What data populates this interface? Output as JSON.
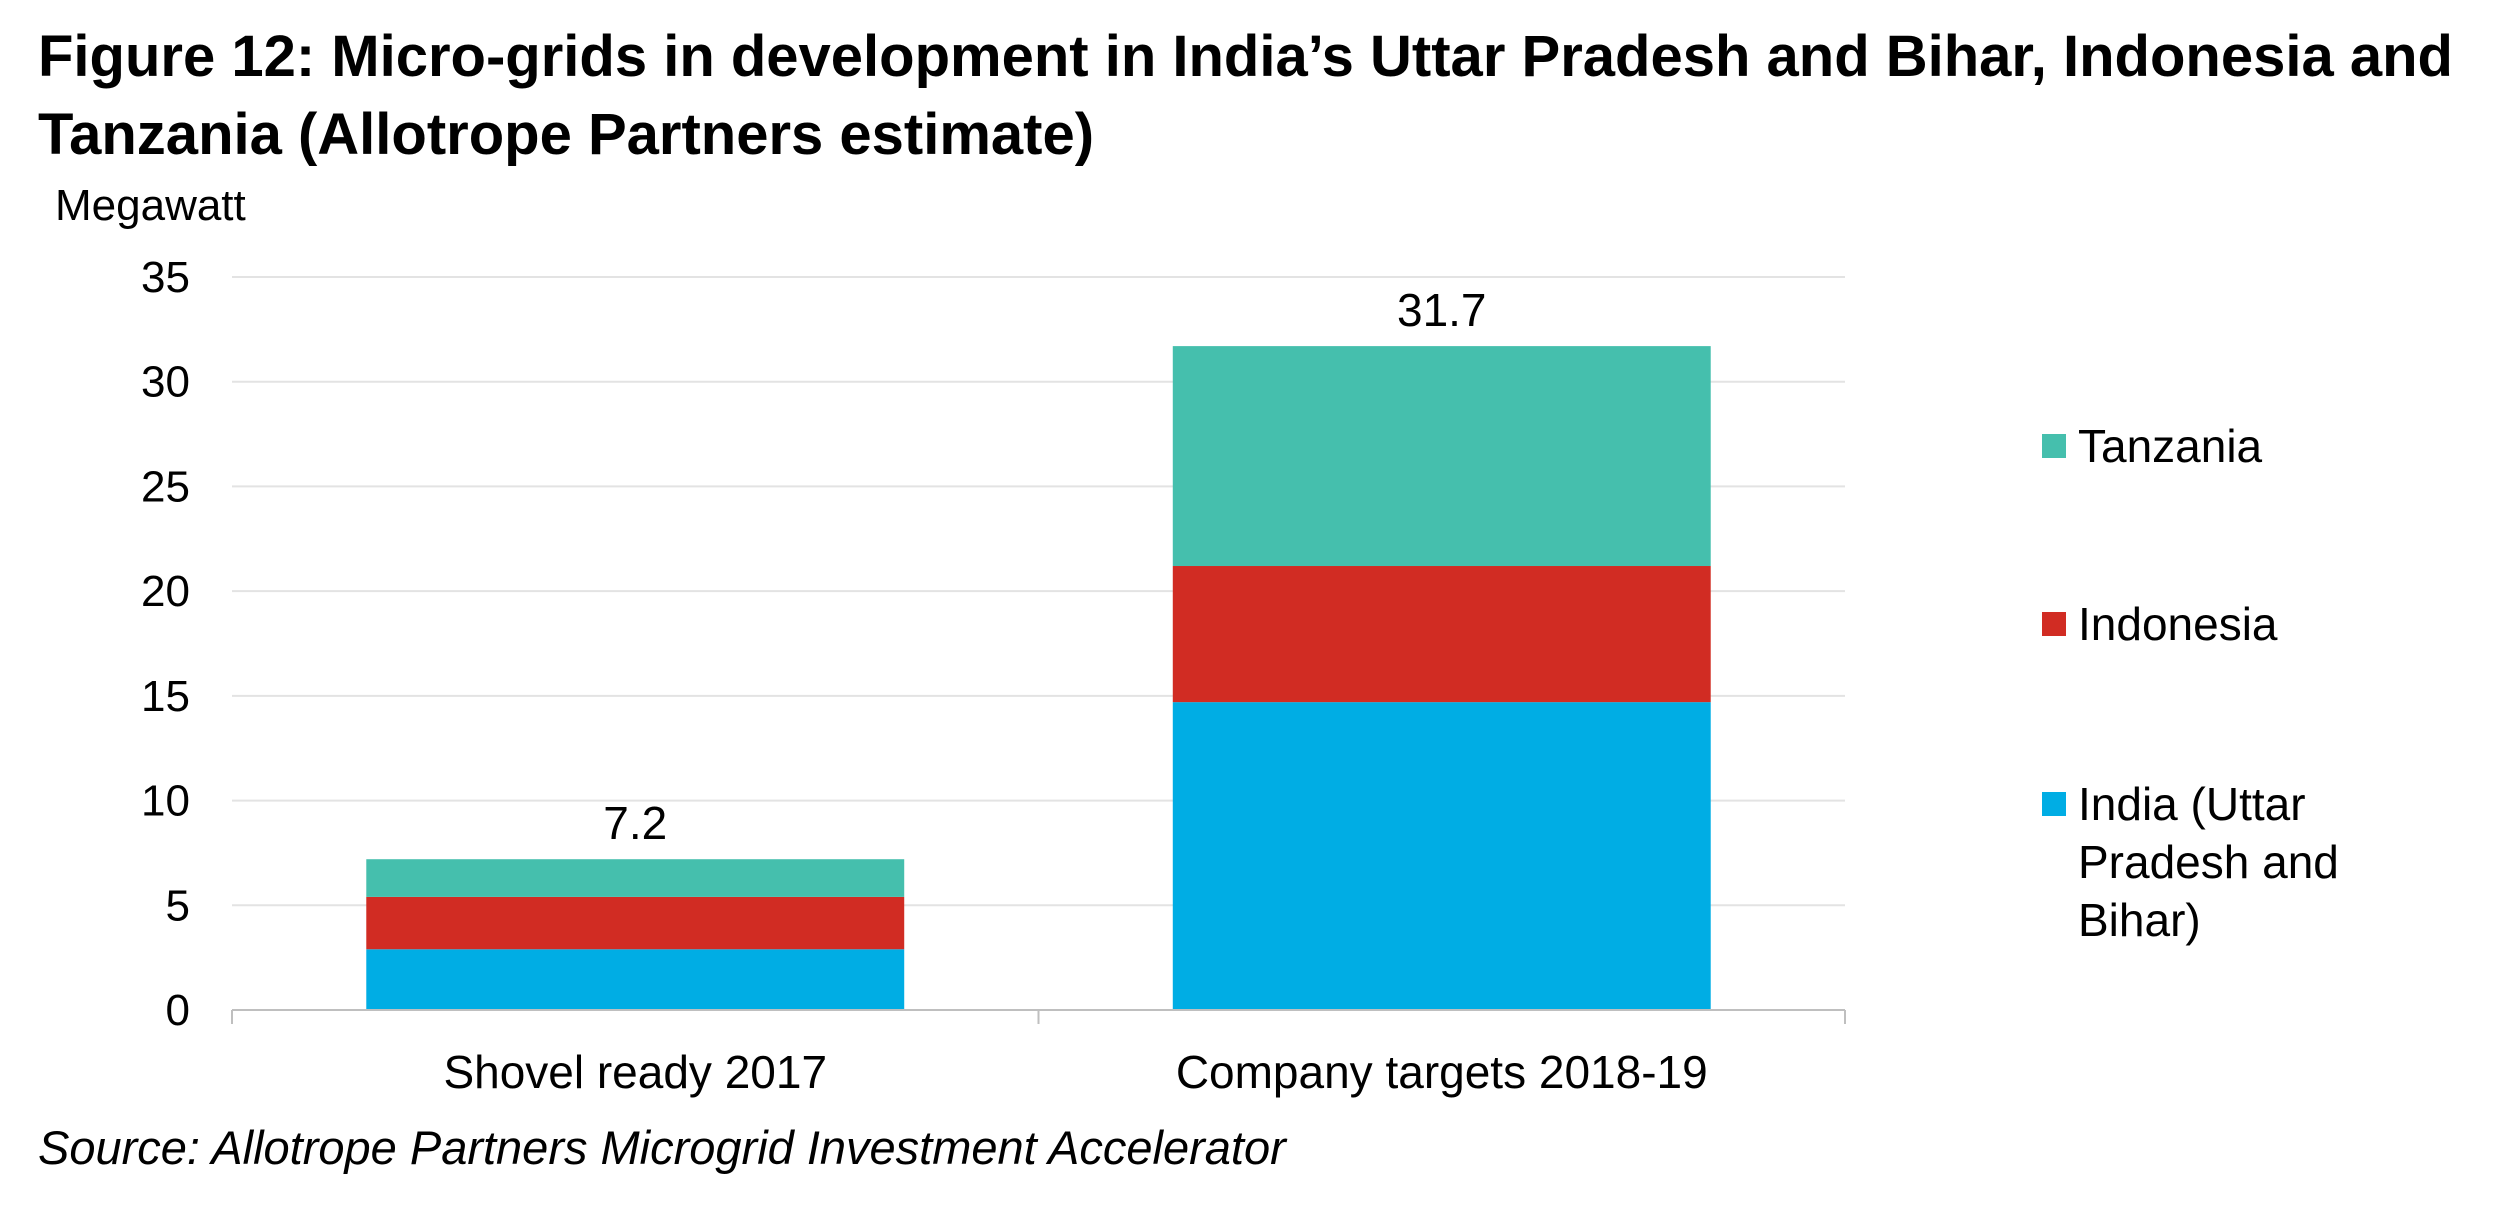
{
  "figure": {
    "title": "Figure 12: Micro-grids in development in India’s Uttar Pradesh and Bihar, Indonesia and Tanzania (Allotrope Partners estimate)",
    "source": "Source: Allotrope Partners Microgrid Investment Accelerator"
  },
  "chart_data": {
    "type": "bar",
    "stacked": true,
    "title": "",
    "xlabel": "",
    "ylabel": "Megawatt",
    "ylim": [
      0,
      35
    ],
    "yticks": [
      0,
      5,
      10,
      15,
      20,
      25,
      30,
      35
    ],
    "grid": true,
    "legend_position": "right",
    "categories": [
      "Shovel ready 2017",
      "Company targets 2018-19"
    ],
    "series": [
      {
        "name": "India (Uttar Pradesh and Bihar)",
        "legend_lines": [
          "India (Uttar",
          "Pradesh and",
          "Bihar)"
        ],
        "color": "#00ADE4",
        "values": [
          2.9,
          14.7
        ]
      },
      {
        "name": "Indonesia",
        "legend_lines": [
          "Indonesia"
        ],
        "color": "#D12C23",
        "values": [
          2.5,
          6.5
        ]
      },
      {
        "name": "Tanzania",
        "legend_lines": [
          "Tanzania"
        ],
        "color": "#45BFAD",
        "values": [
          1.8,
          10.5
        ]
      }
    ],
    "totals": [
      7.2,
      31.7
    ],
    "total_labels": [
      "7.2",
      "31.7"
    ],
    "gridline_color": "#E3E3E3",
    "axis_color": "#BFBFBF"
  }
}
